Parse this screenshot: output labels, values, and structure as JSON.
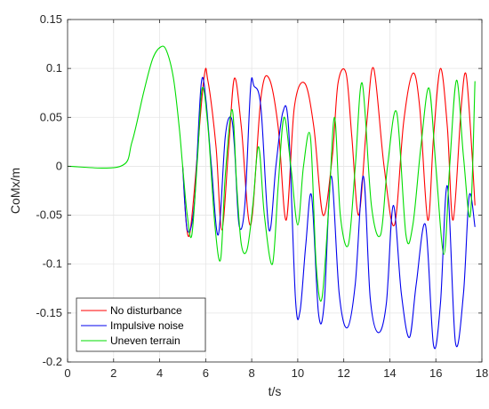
{
  "chart_data": {
    "type": "line",
    "title": "",
    "xlabel": "t/s",
    "ylabel": "CoMx/m",
    "xlim": [
      0,
      18
    ],
    "ylim": [
      -0.2,
      0.15
    ],
    "xticks": [
      "0",
      "2",
      "4",
      "6",
      "8",
      "10",
      "12",
      "14",
      "16",
      "18"
    ],
    "yticks": [
      "0.15",
      "0.1",
      "0.05",
      "0",
      "-0.05",
      "-0.1",
      "-0.15",
      "-0.2"
    ],
    "grid": true,
    "legend_position": "bottom-left",
    "series": [
      {
        "name": "No disturbance",
        "color": "#ff0000",
        "x": [
          5.0,
          5.3,
          5.9,
          6.1,
          6.45,
          6.7,
          7.0,
          7.25,
          7.55,
          7.95,
          8.4,
          8.75,
          9.15,
          9.5,
          9.85,
          10.3,
          10.7,
          11.1,
          11.5,
          11.75,
          12.1,
          12.35,
          12.65,
          13.0,
          13.3,
          13.75,
          14.2,
          14.6,
          15.0,
          15.3,
          15.65,
          15.9,
          16.2,
          16.5,
          16.75,
          17.1,
          17.3,
          17.5,
          17.7
        ],
        "y": [
          0.0,
          -0.07,
          0.085,
          0.087,
          0.02,
          -0.065,
          0.02,
          0.09,
          0.04,
          -0.06,
          0.07,
          0.09,
          0.04,
          -0.055,
          0.06,
          0.085,
          0.04,
          -0.05,
          0.01,
          0.085,
          0.095,
          0.03,
          -0.05,
          0.045,
          0.1,
          0.0,
          -0.06,
          0.045,
          0.095,
          0.06,
          -0.055,
          0.03,
          0.1,
          0.04,
          -0.055,
          0.06,
          0.095,
          0.04,
          -0.04
        ]
      },
      {
        "name": "Impulsive noise",
        "color": "#0000ee",
        "x": [
          5.0,
          5.2,
          5.5,
          5.8,
          6.0,
          6.25,
          6.55,
          6.85,
          7.1,
          7.25,
          7.45,
          7.7,
          7.95,
          8.1,
          8.4,
          8.75,
          9.05,
          9.35,
          9.6,
          9.9,
          10.1,
          10.35,
          10.6,
          10.9,
          11.15,
          11.45,
          11.8,
          12.15,
          12.5,
          12.85,
          13.15,
          13.5,
          13.85,
          14.15,
          14.5,
          14.85,
          15.15,
          15.55,
          15.9,
          16.2,
          16.5,
          16.85,
          17.2,
          17.45,
          17.7
        ],
        "y": [
          0.0,
          -0.065,
          -0.04,
          0.083,
          0.07,
          0.0,
          -0.07,
          0.03,
          0.05,
          0.02,
          -0.06,
          -0.04,
          0.08,
          0.082,
          0.06,
          -0.065,
          0.0,
          0.055,
          0.04,
          -0.135,
          -0.148,
          -0.08,
          -0.03,
          -0.15,
          -0.14,
          -0.01,
          -0.13,
          -0.165,
          -0.12,
          -0.01,
          -0.135,
          -0.17,
          -0.14,
          -0.04,
          -0.13,
          -0.175,
          -0.12,
          -0.06,
          -0.183,
          -0.14,
          -0.02,
          -0.18,
          -0.13,
          -0.03,
          -0.062
        ]
      },
      {
        "name": "Uneven terrain",
        "color": "#00dd00",
        "x": [
          0.0,
          2.3,
          2.8,
          3.3,
          3.7,
          4.05,
          4.3,
          4.6,
          4.85,
          5.0,
          5.2,
          5.4,
          5.65,
          5.85,
          6.1,
          6.4,
          6.65,
          6.85,
          7.15,
          7.35,
          7.55,
          7.8,
          8.05,
          8.3,
          8.55,
          8.9,
          9.15,
          9.4,
          9.7,
          10.0,
          10.25,
          10.55,
          10.8,
          11.05,
          11.35,
          11.6,
          11.85,
          12.2,
          12.5,
          12.8,
          13.2,
          13.6,
          13.9,
          14.3,
          14.7,
          15.0,
          15.35,
          15.7,
          16.0,
          16.35,
          16.6,
          16.9,
          17.2,
          17.5,
          17.7
        ],
        "y": [
          0.0,
          0.0,
          0.025,
          0.075,
          0.11,
          0.122,
          0.118,
          0.09,
          0.04,
          0.0,
          -0.05,
          -0.07,
          0.01,
          0.08,
          0.04,
          -0.06,
          -0.095,
          -0.01,
          0.058,
          -0.02,
          -0.08,
          -0.085,
          -0.04,
          0.02,
          -0.05,
          -0.1,
          -0.02,
          0.05,
          0.0,
          -0.06,
          0.0,
          0.03,
          -0.1,
          -0.135,
          -0.04,
          0.05,
          -0.05,
          -0.08,
          0.0,
          0.085,
          -0.04,
          -0.07,
          0.0,
          0.055,
          -0.07,
          -0.06,
          0.02,
          0.08,
          0.0,
          -0.09,
          0.0,
          0.088,
          0.01,
          -0.05,
          0.087
        ]
      }
    ]
  }
}
